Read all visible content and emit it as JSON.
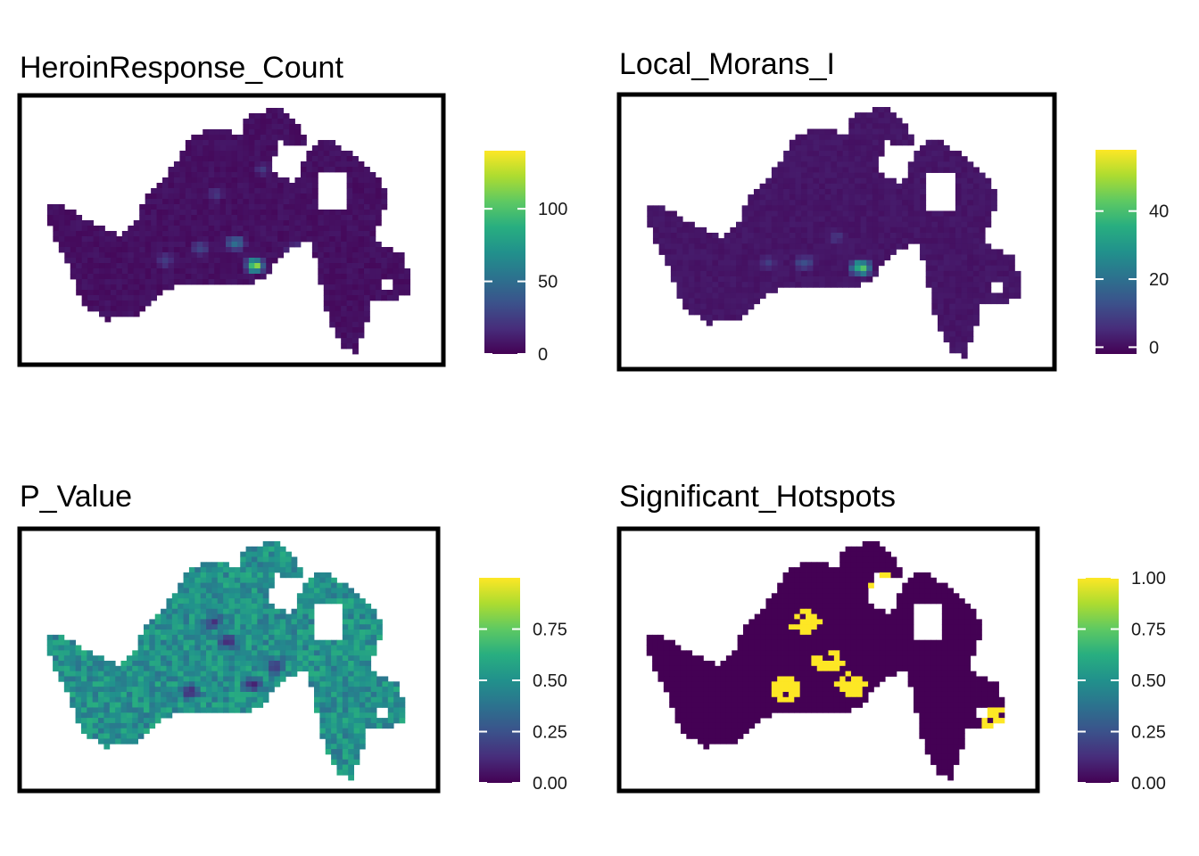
{
  "chart_data": [
    {
      "type": "heatmap",
      "title": "HeroinResponse_Count",
      "colorscale": "viridis",
      "color_range": [
        0,
        140
      ],
      "colorbar_ticks": [
        {
          "value": 0,
          "label": "0"
        },
        {
          "value": 50,
          "label": "50"
        },
        {
          "value": 100,
          "label": "100"
        }
      ],
      "background_level": 3,
      "hotspots": [
        {
          "col": 0.56,
          "row": 0.64,
          "value": 140
        },
        {
          "col": 0.51,
          "row": 0.55,
          "value": 80
        },
        {
          "col": 0.42,
          "row": 0.57,
          "value": 45
        },
        {
          "col": 0.66,
          "row": 0.58,
          "value": 50
        },
        {
          "col": 0.33,
          "row": 0.62,
          "value": 40
        },
        {
          "col": 0.46,
          "row": 0.35,
          "value": 35
        },
        {
          "col": 0.58,
          "row": 0.25,
          "value": 30
        }
      ]
    },
    {
      "type": "heatmap",
      "title": "Local_Morans_I",
      "colorscale": "viridis",
      "color_range": [
        -2,
        58
      ],
      "colorbar_ticks": [
        {
          "value": 0,
          "label": "0"
        },
        {
          "value": 20,
          "label": "20"
        },
        {
          "value": 40,
          "label": "40"
        }
      ],
      "background_level": 0.5,
      "hotspots": [
        {
          "col": 0.56,
          "row": 0.64,
          "value": 55
        },
        {
          "col": 0.42,
          "row": 0.62,
          "value": 18
        },
        {
          "col": 0.5,
          "row": 0.52,
          "value": 10
        },
        {
          "col": 0.33,
          "row": 0.62,
          "value": 10
        }
      ]
    },
    {
      "type": "heatmap",
      "title": "P_Value",
      "colorscale": "viridis",
      "color_range": [
        0,
        1
      ],
      "colorbar_ticks": [
        {
          "value": 0,
          "label": "0.00"
        },
        {
          "value": 0.25,
          "label": "0.25"
        },
        {
          "value": 0.5,
          "label": "0.50"
        },
        {
          "value": 0.75,
          "label": "0.75"
        }
      ],
      "background_level": 0.5,
      "hotspots": [
        {
          "col": 0.4,
          "row": 0.63,
          "value": 0.02
        },
        {
          "col": 0.56,
          "row": 0.6,
          "value": 0.02
        },
        {
          "col": 0.5,
          "row": 0.42,
          "value": 0.05
        },
        {
          "col": 0.62,
          "row": 0.52,
          "value": 0.1
        },
        {
          "col": 0.46,
          "row": 0.34,
          "value": 0.1
        },
        {
          "col": 0.68,
          "row": 0.7,
          "value": 0.1
        }
      ]
    },
    {
      "type": "heatmap",
      "title": "Significant_Hotspots",
      "colorscale": "viridis",
      "color_range": [
        0,
        1
      ],
      "colorbar_ticks": [
        {
          "value": 0,
          "label": "0.00"
        },
        {
          "value": 0.25,
          "label": "0.25"
        },
        {
          "value": 0.5,
          "label": "0.50"
        },
        {
          "value": 0.75,
          "label": "0.75"
        },
        {
          "value": 1,
          "label": "1.00"
        }
      ],
      "background_level": 0,
      "hotspots": [
        {
          "col": 0.39,
          "row": 0.62,
          "value": 1
        },
        {
          "col": 0.56,
          "row": 0.6,
          "value": 1
        },
        {
          "col": 0.5,
          "row": 0.5,
          "value": 1
        },
        {
          "col": 0.44,
          "row": 0.34,
          "value": 1
        },
        {
          "col": 0.64,
          "row": 0.18,
          "value": 1
        },
        {
          "col": 0.92,
          "row": 0.74,
          "value": 1
        }
      ]
    }
  ]
}
